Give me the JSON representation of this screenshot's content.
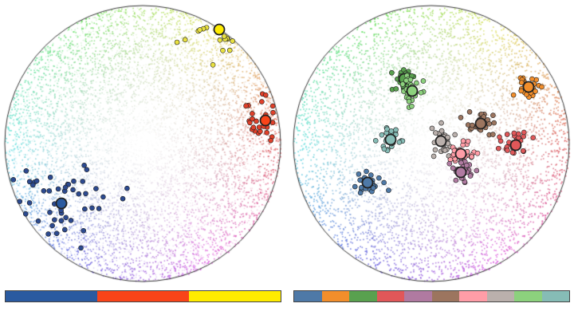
{
  "left_panel": {
    "palette": [
      "#2a5aa0",
      "#f94419",
      "#ffec00"
    ]
  },
  "right_panel": {
    "palette": [
      "#4e79a7",
      "#f28e2b",
      "#59a14f",
      "#e15759",
      "#b07aa1",
      "#9c755f",
      "#ff9da7",
      "#bab0ac",
      "#8cd17d",
      "#86bcb6"
    ]
  }
}
